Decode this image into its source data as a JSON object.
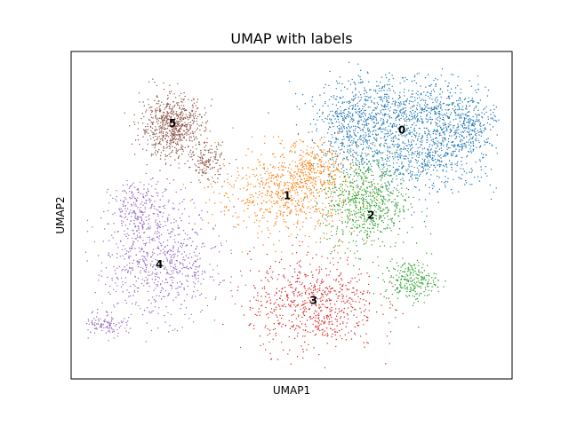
{
  "chart_data": {
    "type": "scatter",
    "title": "UMAP with labels",
    "xlabel": "UMAP1",
    "ylabel": "UMAP2",
    "xlim": [
      0,
      100
    ],
    "ylim": [
      0,
      100
    ],
    "grid": false,
    "legend": "on data",
    "ticks": "none",
    "series": [
      {
        "label": "0",
        "color": "#1f77b4",
        "center": [
          75.0,
          76.0
        ],
        "blobs": [
          [
            74,
            82,
            15,
            9,
            1.0
          ],
          [
            80,
            68,
            14,
            9,
            0.9
          ],
          [
            64,
            76,
            7,
            10,
            0.5
          ],
          [
            88,
            78,
            8,
            8,
            0.5
          ]
        ]
      },
      {
        "label": "1",
        "color": "#ff7f0e",
        "center": [
          49.0,
          56.0
        ],
        "blobs": [
          [
            49,
            57,
            13,
            11,
            1.0
          ],
          [
            55,
            65,
            5,
            7,
            0.3
          ]
        ]
      },
      {
        "label": "2",
        "color": "#2ca02c",
        "center": [
          68.0,
          50.0
        ],
        "blobs": [
          [
            67,
            54,
            8,
            12,
            1.0
          ],
          [
            77,
            30,
            5,
            5,
            0.35
          ]
        ]
      },
      {
        "label": "3",
        "color": "#d62728",
        "center": [
          55.0,
          24.0
        ],
        "blobs": [
          [
            55,
            23,
            12,
            12,
            1.0
          ]
        ]
      },
      {
        "label": "4",
        "color": "#9467bd",
        "center": [
          20.0,
          35.0
        ],
        "blobs": [
          [
            20,
            35,
            12,
            14,
            1.0
          ],
          [
            16,
            52,
            6,
            7,
            0.35
          ],
          [
            8,
            17,
            4,
            3,
            0.15
          ]
        ]
      },
      {
        "label": "5",
        "color": "#8c564b",
        "center": [
          23.0,
          78.0
        ],
        "blobs": [
          [
            23,
            77,
            6,
            8,
            1.0
          ],
          [
            31,
            66,
            3,
            5,
            0.2
          ]
        ]
      }
    ]
  }
}
